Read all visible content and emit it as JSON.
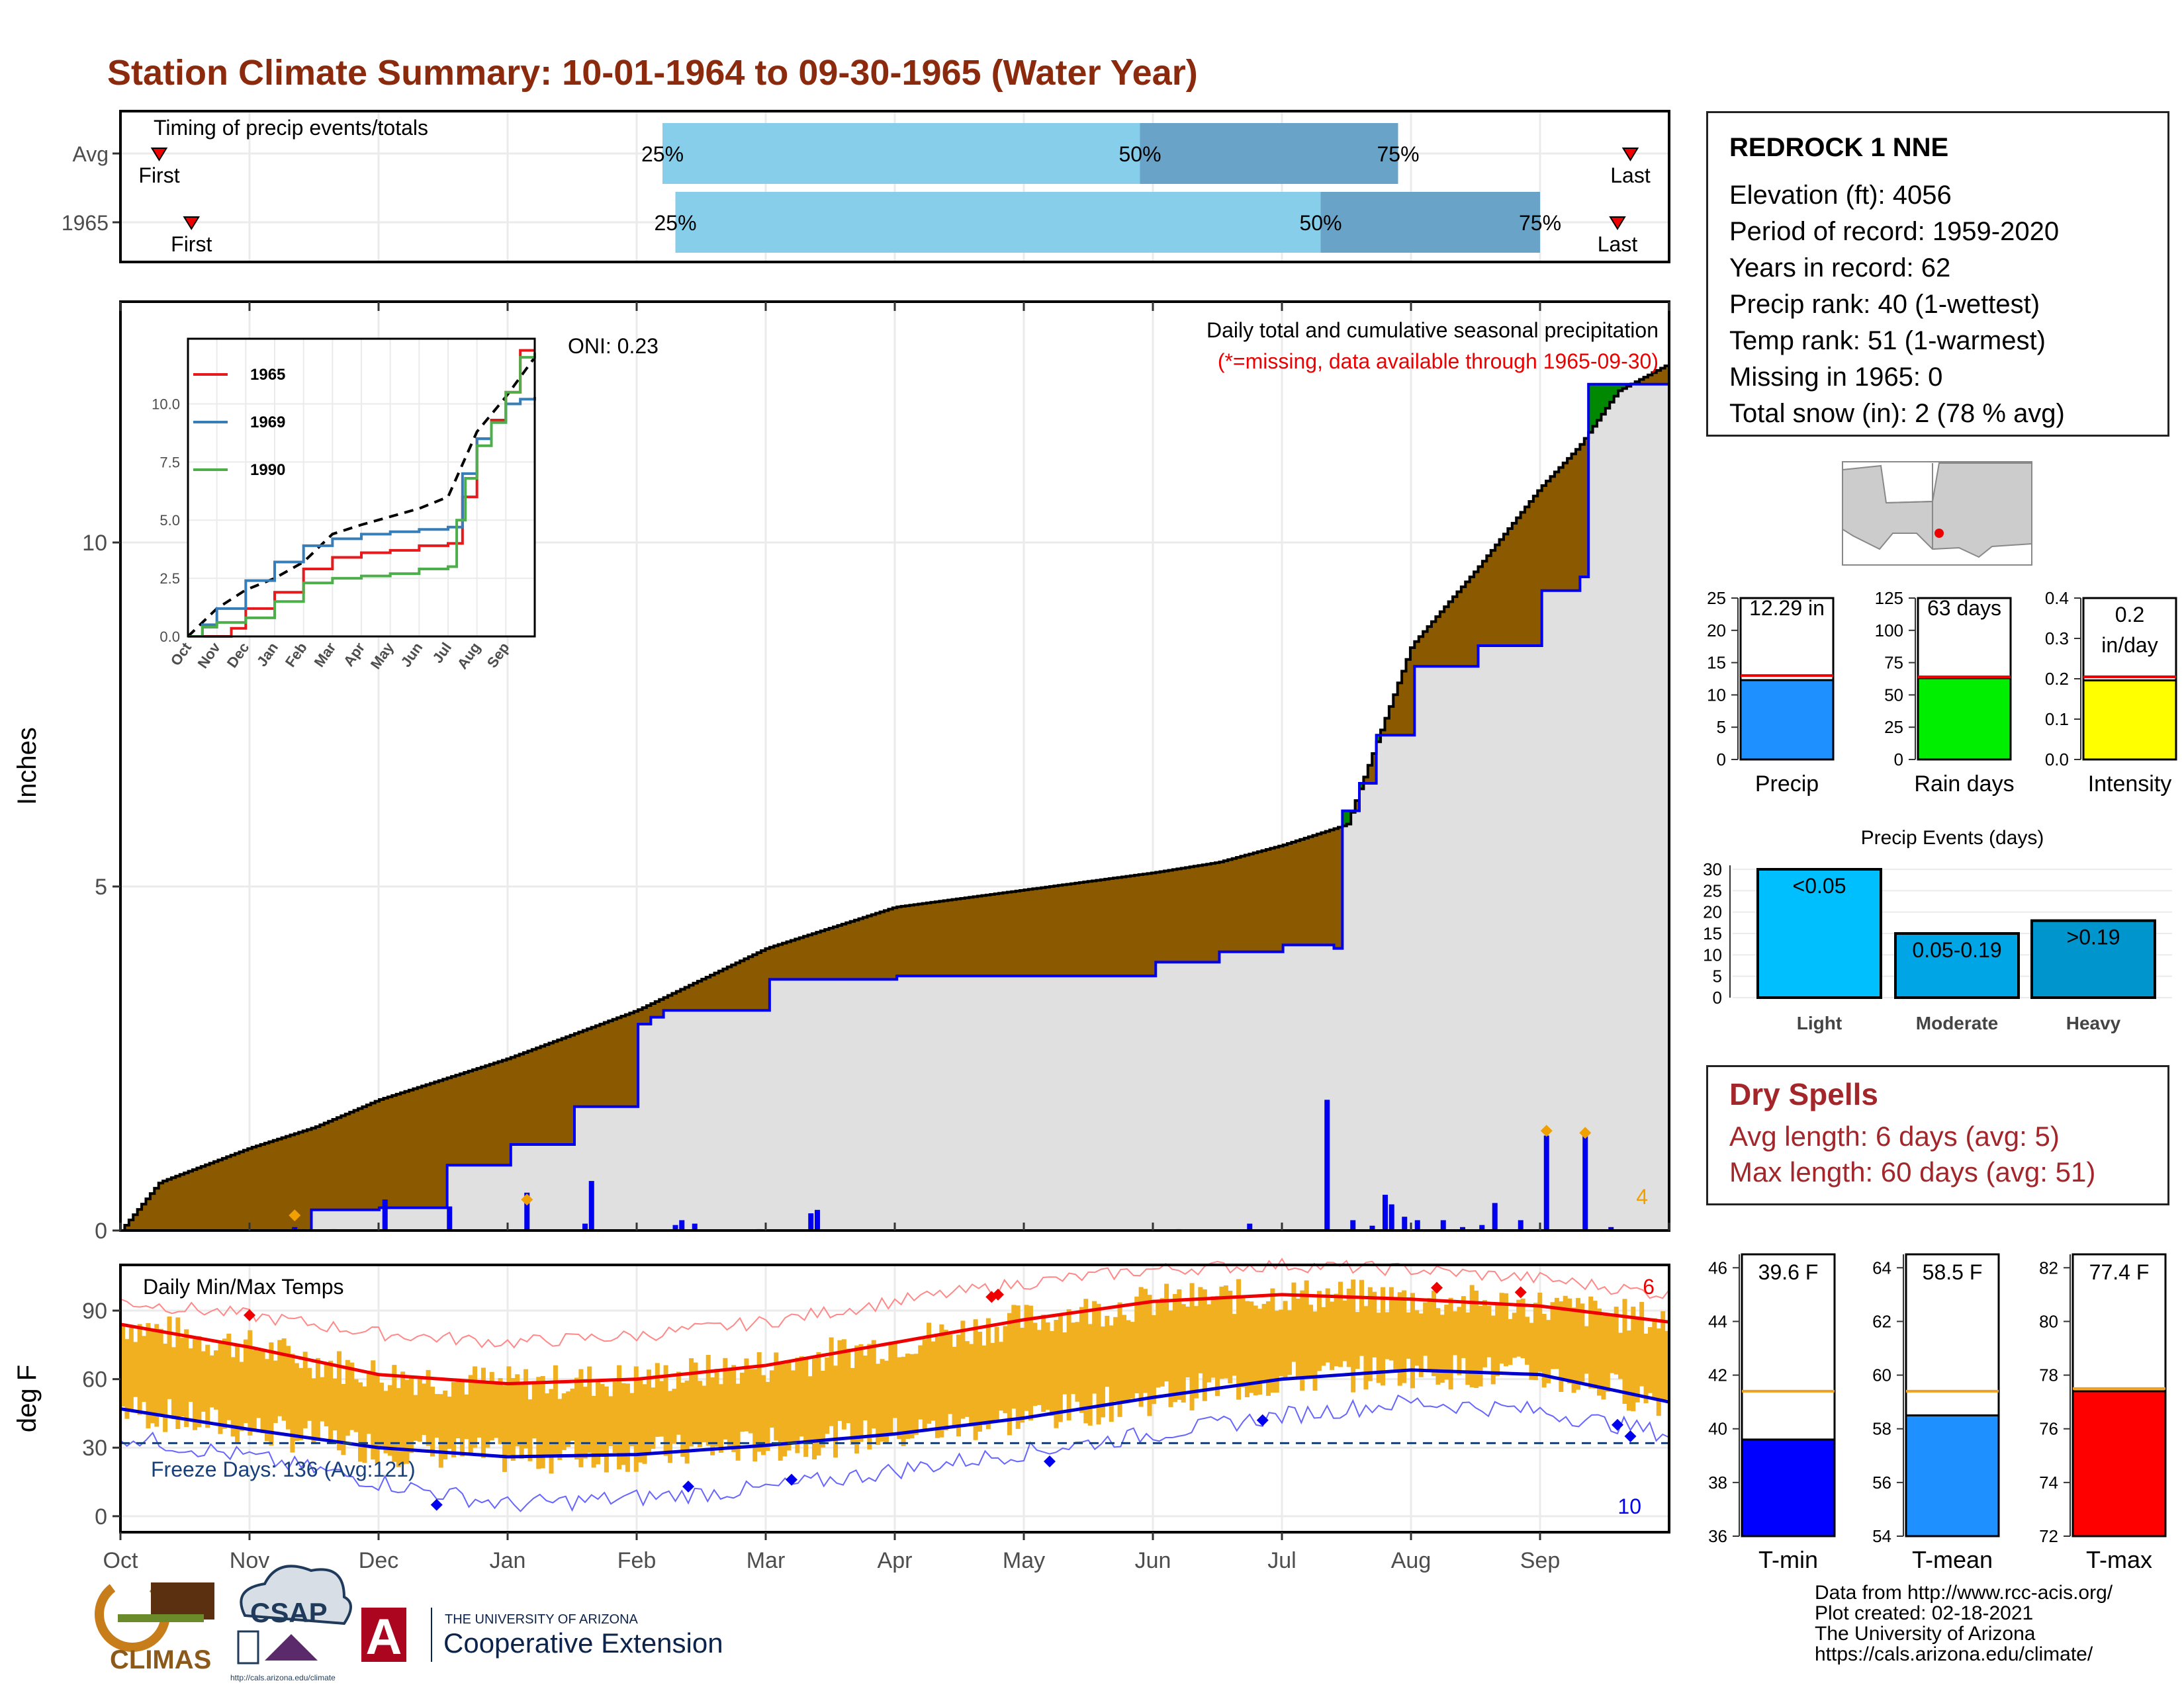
{
  "title": "Station Climate Summary: 10-01-1964 to 09-30-1965 (Water Year)",
  "colors": {
    "title": "#8b2a0d",
    "brown": "#8b5a00",
    "green": "#008800",
    "blue": "#0000ee",
    "light_blue": "#87ceeb",
    "steel_blue": "#6aa3c8",
    "grey_fill": "#e0e0e0",
    "orange": "#f0b020",
    "red": "#ee0000",
    "dry_red": "#a3262a"
  },
  "timing": {
    "title": "Timing of precip events/totals",
    "rows": [
      {
        "label": "Avg",
        "first_label": "First",
        "last_label": "Last",
        "first_month": 0.3,
        "p25": 4.2,
        "p50": 7.9,
        "p75": 9.9,
        "last_month": 11.7,
        "p25_label": "25%",
        "p50_label": "50%",
        "p75_label": "75%"
      },
      {
        "label": "1965",
        "first_label": "First",
        "last_label": "Last",
        "first_month": 0.55,
        "p25": 4.3,
        "p50": 9.3,
        "p75": 11.0,
        "last_month": 11.6,
        "p25_label": "25%",
        "p50_label": "50%",
        "p75_label": "75%"
      }
    ]
  },
  "precip_panel": {
    "ylabel": "Inches",
    "title": "Daily total and cumulative seasonal precipitation",
    "subtitle": "(*=missing, data available through 1965-09-30)",
    "oni": "ONI: 0.23",
    "count_label": "4",
    "yticks": [
      "0",
      "5",
      "10"
    ]
  },
  "inset": {
    "yticks": [
      "0.0",
      "2.5",
      "5.0",
      "7.5",
      "10.0"
    ],
    "xticks": [
      "Oct",
      "Nov",
      "Dec",
      "Jan",
      "Feb",
      "Mar",
      "Apr",
      "May",
      "Jun",
      "Jul",
      "Aug",
      "Sep"
    ],
    "legend": [
      {
        "name": "1965",
        "color": "#e41a1c"
      },
      {
        "name": "1969",
        "color": "#377eb8"
      },
      {
        "name": "1990",
        "color": "#4daf4a"
      }
    ]
  },
  "station": {
    "name": "REDROCK 1 NNE",
    "lines": [
      "Elevation (ft): 4056",
      "Period of record: 1959-2020",
      "Years in record: 62",
      "Precip rank: 40 (1-wettest)",
      "Temp rank: 51 (1-warmest)",
      "Missing in 1965: 0",
      "Total snow (in): 2 (78 % avg)"
    ]
  },
  "mini_bars": [
    {
      "xlabel": "Precip",
      "value_label": "12.29 in",
      "yticks": [
        "0",
        "5",
        "10",
        "15",
        "20",
        "25"
      ],
      "ymax": 25,
      "value": 12.29,
      "avg": 13.0,
      "color": "#1e90ff"
    },
    {
      "xlabel": "Rain days",
      "value_label": "63 days",
      "yticks": [
        "0",
        "25",
        "50",
        "75",
        "100",
        "125"
      ],
      "ymax": 125,
      "value": 63,
      "avg": 64,
      "color": "#00ee00"
    },
    {
      "xlabel": "Intensity",
      "value_label": "0.2 in/day",
      "value_label_1": "0.2",
      "value_label_2": "in/day",
      "yticks": [
        "0.0",
        "0.1",
        "0.2",
        "0.3",
        "0.4"
      ],
      "ymax": 0.4,
      "value": 0.196,
      "avg": 0.205,
      "color": "#ffff00"
    }
  ],
  "precip_events": {
    "title": "Precip Events (days)",
    "yticks": [
      "0",
      "5",
      "10",
      "15",
      "20",
      "25",
      "30"
    ],
    "categories": [
      "Light",
      "Moderate",
      "Heavy"
    ],
    "bar_labels": [
      "<0.05",
      "0.05-0.19",
      ">0.19"
    ],
    "values": [
      30,
      15,
      18
    ],
    "colors": [
      "#00bfff",
      "#00a5e6",
      "#0095cc"
    ]
  },
  "dry_spells": {
    "title": "Dry Spells",
    "avg_line": "Avg length: 6 days (avg: 5)",
    "max_line": "Max length: 60 days (avg: 51)"
  },
  "temp_panel": {
    "ylabel": "deg F",
    "title": "Daily Min/Max Temps",
    "freeze_label": "Freeze Days: 136 (Avg:121)",
    "hot_count": "6",
    "cold_count": "10",
    "yticks": [
      "0",
      "30",
      "60",
      "90"
    ],
    "xticks": [
      "Oct",
      "Nov",
      "Dec",
      "Jan",
      "Feb",
      "Mar",
      "Apr",
      "May",
      "Jun",
      "Jul",
      "Aug",
      "Sep"
    ]
  },
  "temp_bars": [
    {
      "xlabel": "T-min",
      "value_label": "39.6 F",
      "yticks": [
        "36",
        "38",
        "40",
        "42",
        "44",
        "46"
      ],
      "ymin": 36,
      "ymax": 46.5,
      "value": 39.6,
      "avg": 41.4,
      "color": "#0000ff"
    },
    {
      "xlabel": "T-mean",
      "value_label": "58.5 F",
      "yticks": [
        "54",
        "56",
        "58",
        "60",
        "62",
        "64"
      ],
      "ymin": 54,
      "ymax": 64.5,
      "value": 58.5,
      "avg": 59.4,
      "color": "#1e90ff"
    },
    {
      "xlabel": "T-max",
      "value_label": "77.4 F",
      "yticks": [
        "72",
        "74",
        "76",
        "78",
        "80",
        "82"
      ],
      "ymin": 72,
      "ymax": 82.5,
      "value": 77.4,
      "avg": 77.5,
      "color": "#ff0000"
    }
  ],
  "credits": [
    "Data from http://www.rcc-acis.org/",
    "Plot created: 02-18-2021",
    "The University of Arizona",
    "https://cals.arizona.edu/climate/"
  ],
  "logos": {
    "climas": "CLIMAS",
    "csap": "CSAP",
    "csap_url": "http://cals.arizona.edu/climate",
    "ua_line1": "THE UNIVERSITY OF ARIZONA",
    "ua_line2": "Cooperative Extension",
    "ua_mark": "A"
  },
  "chart_data": [
    {
      "type": "area",
      "title": "Daily total and cumulative seasonal precipitation",
      "ylabel": "Inches",
      "ylim": [
        0,
        13.5
      ],
      "x_unit": "month index (0 = Oct 1, 12 = Sep 30)",
      "series": [
        {
          "name": "",
          "x": [
            0,
            0.3,
            1,
            1.5,
            2,
            3,
            4,
            5,
            6,
            7,
            8,
            8.5,
            9,
            9.5,
            10,
            10.5,
            11,
            11.3,
            11.6,
            12
          ],
          "values": [
            0,
            0.7,
            1.2,
            1.5,
            1.9,
            2.5,
            3.2,
            4.1,
            4.7,
            4.95,
            5.2,
            5.35,
            5.6,
            5.9,
            8.5,
            9.6,
            10.8,
            11.4,
            12.2,
            12.6
          ]
        },
        {
          "name": "",
          "x": [
            0,
            1.3,
            1.45,
            2,
            2.5,
            3,
            3.5,
            4,
            4.1,
            4.2,
            5,
            6,
            7,
            8,
            8.5,
            9,
            9.4,
            9.45,
            9.6,
            9.7,
            10,
            10.5,
            11,
            11.3,
            11.35,
            11.6,
            11.65,
            12
          ],
          "values": [
            0,
            0,
            0.3,
            0.33,
            0.95,
            1.25,
            1.8,
            3.0,
            3.1,
            3.2,
            3.65,
            3.7,
            3.7,
            3.9,
            4.05,
            4.15,
            4.1,
            6.1,
            6.5,
            7.2,
            8.2,
            8.5,
            9.3,
            9.5,
            12.3,
            12.3,
            12.3,
            12.29
          ]
        }
      ],
      "daily_precip": [
        {
          "x": 1.35,
          "v": 0.05
        },
        {
          "x": 1.65,
          "v": 0.02
        },
        {
          "x": 2.05,
          "v": 0.45
        },
        {
          "x": 2.55,
          "v": 0.35
        },
        {
          "x": 3.15,
          "v": 0.55
        },
        {
          "x": 3.6,
          "v": 0.1
        },
        {
          "x": 3.65,
          "v": 0.72
        },
        {
          "x": 4.3,
          "v": 0.08
        },
        {
          "x": 4.35,
          "v": 0.15
        },
        {
          "x": 4.45,
          "v": 0.1
        },
        {
          "x": 4.95,
          "v": 0.02
        },
        {
          "x": 5.35,
          "v": 0.25
        },
        {
          "x": 5.4,
          "v": 0.3
        },
        {
          "x": 8.2,
          "v": 0.02
        },
        {
          "x": 8.75,
          "v": 0.1
        },
        {
          "x": 9.35,
          "v": 1.9
        },
        {
          "x": 9.55,
          "v": 0.15
        },
        {
          "x": 9.7,
          "v": 0.07
        },
        {
          "x": 9.8,
          "v": 0.52
        },
        {
          "x": 9.85,
          "v": 0.38
        },
        {
          "x": 9.95,
          "v": 0.2
        },
        {
          "x": 10.05,
          "v": 0.15
        },
        {
          "x": 10.25,
          "v": 0.15
        },
        {
          "x": 10.4,
          "v": 0.05
        },
        {
          "x": 10.55,
          "v": 0.08
        },
        {
          "x": 10.65,
          "v": 0.4
        },
        {
          "x": 10.85,
          "v": 0.15
        },
        {
          "x": 11.0,
          "v": 0.02
        },
        {
          "x": 11.05,
          "v": 1.38
        },
        {
          "x": 11.35,
          "v": 1.38
        },
        {
          "x": 11.55,
          "v": 0.05
        }
      ],
      "missing_markers": [
        {
          "x": 1.35,
          "v": 0.22
        },
        {
          "x": 3.15,
          "v": 0.45
        },
        {
          "x": 11.05,
          "v": 1.45
        },
        {
          "x": 11.35,
          "v": 1.42
        }
      ]
    },
    {
      "type": "line",
      "title": "",
      "ylim": [
        0,
        13
      ],
      "x_unit": "month index (0 = Oct 1, 12 = Sep 30)",
      "series": [
        {
          "name": "",
          "style": "dashed",
          "x": [
            0,
            1,
            2,
            3,
            4,
            5,
            6,
            7,
            8,
            9,
            10,
            11,
            12
          ],
          "values": [
            0,
            1.2,
            2.0,
            2.5,
            3.2,
            4.4,
            4.8,
            5.15,
            5.5,
            6.0,
            8.8,
            10.3,
            12.0
          ]
        },
        {
          "name": "1965",
          "x": [
            0,
            1,
            1.5,
            2,
            3,
            4,
            5,
            6,
            7,
            8,
            9,
            9.5,
            10,
            10.5,
            11,
            11.5,
            12
          ],
          "values": [
            0,
            0,
            0.35,
            1.2,
            1.9,
            2.9,
            3.4,
            3.6,
            3.7,
            3.9,
            4.0,
            6.0,
            8.5,
            9.3,
            10.5,
            12.3,
            12.3
          ]
        },
        {
          "name": "1969",
          "x": [
            0,
            0.5,
            1,
            2,
            3,
            4,
            5,
            6,
            7,
            8,
            9,
            9.5,
            10,
            10.5,
            11,
            11.5,
            12
          ],
          "values": [
            0,
            0.5,
            1.2,
            2.4,
            3.2,
            3.9,
            4.2,
            4.4,
            4.5,
            4.6,
            4.7,
            7.0,
            8.5,
            9.2,
            10.0,
            10.2,
            10.3
          ]
        },
        {
          "name": "1990",
          "x": [
            0,
            0.5,
            1,
            2,
            3,
            4,
            5,
            6,
            7,
            8,
            9,
            9.3,
            9.6,
            10,
            10.5,
            11,
            11.5,
            12
          ],
          "values": [
            0,
            0.4,
            0.6,
            0.8,
            1.5,
            2.3,
            2.5,
            2.6,
            2.7,
            2.9,
            3.0,
            5.0,
            6.8,
            8.2,
            9.2,
            10.5,
            12.0,
            12.2
          ]
        }
      ]
    },
    {
      "type": "bar",
      "title": "",
      "categories": [
        "Precip",
        "Rain days",
        "Intensity"
      ],
      "series": [
        {
          "name": "",
          "values": [
            12.29,
            63,
            0.2
          ]
        }
      ]
    },
    {
      "type": "bar",
      "title": "Precip Events (days)",
      "categories": [
        "Light",
        "Moderate",
        "Heavy"
      ],
      "values": [
        30,
        15,
        18
      ],
      "ylim": [
        0,
        30
      ]
    },
    {
      "type": "line",
      "title": "Daily Min/Max Temps",
      "ylabel": "deg F",
      "ylim": [
        -5,
        110
      ],
      "x_unit": "month index (0 = Oct 1, 12 = Sep 30)",
      "series": [
        {
          "name": "",
          "style": "avg max",
          "x": [
            0,
            1,
            2,
            3,
            4,
            5,
            6,
            7,
            8,
            9,
            10,
            11,
            12
          ],
          "values": [
            84,
            74,
            62,
            58,
            60,
            66,
            76,
            86,
            94,
            97,
            95,
            92,
            85
          ]
        },
        {
          "name": "",
          "style": "avg min",
          "x": [
            0,
            1,
            2,
            3,
            4,
            5,
            6,
            7,
            8,
            9,
            10,
            11,
            12
          ],
          "values": [
            47,
            38,
            30,
            26,
            27,
            31,
            36,
            43,
            52,
            60,
            64,
            62,
            50
          ]
        },
        {
          "name": "",
          "style": "record max",
          "x": [
            0,
            1,
            2,
            3,
            4,
            5,
            6,
            7,
            8,
            9,
            10,
            11,
            12
          ],
          "values": [
            94,
            88,
            80,
            76,
            79,
            85,
            94,
            102,
            108,
            110,
            108,
            104,
            97
          ]
        },
        {
          "name": "",
          "style": "record min",
          "x": [
            0,
            1,
            2,
            3,
            4,
            5,
            6,
            7,
            8,
            9,
            10,
            11,
            12
          ],
          "values": [
            35,
            26,
            15,
            5,
            8,
            12,
            20,
            28,
            36,
            44,
            50,
            46,
            36
          ]
        }
      ],
      "freeze_line": 32
    },
    {
      "type": "bar",
      "title": "",
      "categories": [
        "T-min",
        "T-mean",
        "T-max"
      ],
      "series": [
        {
          "name": "",
          "values": [
            39.6,
            58.5,
            77.4
          ]
        }
      ]
    }
  ]
}
